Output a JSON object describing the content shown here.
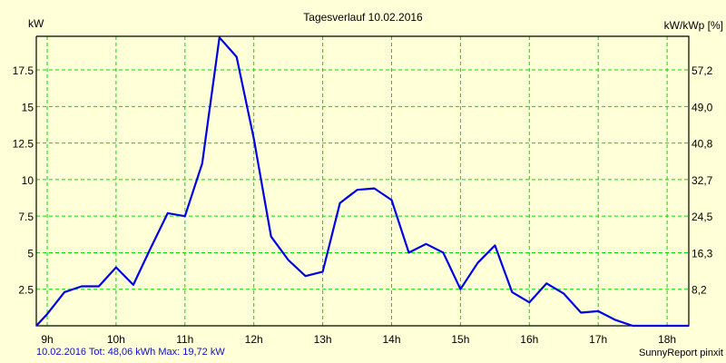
{
  "title": "Tagesverlauf 10.02.2016",
  "y_left_unit": "kW",
  "y_right_unit": "kW/kWp [%]",
  "footer_summary": "10.02.2016 Tot: 48,06 kWh Max: 19,72 kW",
  "footer_brand": "SunnyReport pinxit",
  "colors": {
    "background": "#ffffd8",
    "grid": "#00e000",
    "line": "#0000e0",
    "axis": "#000000"
  },
  "chart_data": {
    "type": "line",
    "title": "Tagesverlauf 10.02.2016",
    "xlabel": "",
    "ylabel": "kW",
    "ylabel_right": "kW/kWp [%]",
    "x_ticks": [
      "9h",
      "10h",
      "11h",
      "12h",
      "13h",
      "14h",
      "15h",
      "16h",
      "17h",
      "18h"
    ],
    "y_ticks_left": [
      "2.5",
      "5",
      "7.5",
      "10",
      "12.5",
      "15",
      "17.5"
    ],
    "y_ticks_right": [
      "8,2",
      "16,3",
      "24,5",
      "32,7",
      "40,8",
      "49,0",
      "57,2"
    ],
    "ylim": [
      0,
      19.8
    ],
    "grid": true,
    "legend": null,
    "series": [
      {
        "name": "kW",
        "x": [
          "8:45",
          "9:00",
          "9:15",
          "9:30",
          "9:45",
          "10:00",
          "10:15",
          "10:30",
          "10:45",
          "11:00",
          "11:15",
          "11:30",
          "11:45",
          "12:00",
          "12:15",
          "12:30",
          "12:45",
          "13:00",
          "13:15",
          "13:30",
          "13:45",
          "14:00",
          "14:15",
          "14:30",
          "14:45",
          "15:00",
          "15:15",
          "15:30",
          "15:45",
          "16:00",
          "16:15",
          "16:30",
          "16:45",
          "17:00",
          "17:15",
          "17:30",
          "17:45",
          "18:00",
          "18:15",
          "18:30"
        ],
        "values": [
          0.0,
          0.8,
          2.3,
          2.7,
          2.7,
          4.0,
          2.8,
          5.3,
          7.7,
          7.5,
          11.1,
          19.72,
          18.4,
          12.8,
          6.1,
          4.5,
          3.4,
          3.7,
          8.4,
          9.3,
          9.4,
          8.6,
          5.0,
          5.6,
          5.0,
          2.5,
          4.3,
          5.5,
          2.3,
          1.6,
          2.9,
          2.2,
          0.9,
          1.0,
          0.4,
          0.0,
          0.0,
          0.0,
          0.0,
          0.0
        ]
      }
    ]
  }
}
